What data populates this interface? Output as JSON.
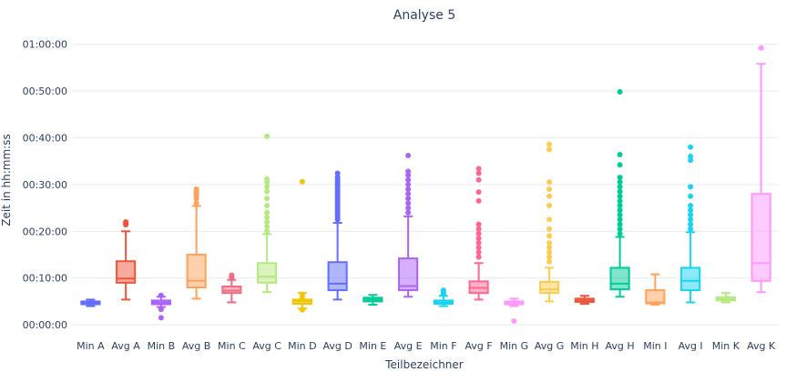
{
  "chart_data": {
    "type": "box",
    "title": "Analyse 5",
    "xlabel": "Teilbezeichner",
    "ylabel": "Zeit in hh:mm:ss",
    "y_unit": "minutes",
    "ylim": [
      -2.5,
      64
    ],
    "yticks": [
      0,
      10,
      20,
      30,
      40,
      50,
      60
    ],
    "ytick_labels": [
      "00:00:00",
      "00:10:00",
      "00:20:00",
      "00:30:00",
      "00:40:00",
      "00:50:00",
      "01:00:00"
    ],
    "grid": true,
    "legend": "none",
    "categories": [
      "Min A",
      "Avg A",
      "Min B",
      "Avg B",
      "Min C",
      "Avg C",
      "Min D",
      "Avg D",
      "Min E",
      "Avg E",
      "Min F",
      "Avg F",
      "Min G",
      "Avg G",
      "Min H",
      "Avg H",
      "Min I",
      "Avg I",
      "Min K",
      "Avg K"
    ],
    "boxes": [
      {
        "color": "#636efa",
        "q1": 4.4,
        "median": 4.7,
        "q3": 5.0,
        "whisker_low": 4.0,
        "whisker_high": 5.4,
        "outliers": []
      },
      {
        "color": "#ef553b",
        "q1": 9.0,
        "median": 9.9,
        "q3": 13.6,
        "whisker_low": 5.4,
        "whisker_high": 20.0,
        "outliers": [
          21.4,
          21.7,
          22.0
        ]
      },
      {
        "color": "#ab63fa",
        "q1": 4.4,
        "median": 4.8,
        "q3": 5.2,
        "whisker_low": 3.8,
        "whisker_high": 6.0,
        "outliers": [
          1.5,
          3.3,
          6.3
        ]
      },
      {
        "color": "#ffa15a",
        "q1": 8.0,
        "median": 9.4,
        "q3": 15.0,
        "whisker_low": 5.6,
        "whisker_high": 25.4,
        "outliers": [
          26.0,
          27.0,
          27.6,
          28.0,
          28.3,
          28.6,
          29.0
        ]
      },
      {
        "color": "#ef6b82",
        "q1": 6.8,
        "median": 7.3,
        "q3": 8.2,
        "whisker_low": 4.8,
        "whisker_high": 9.6,
        "outliers": [
          10.0,
          10.3,
          10.6
        ]
      },
      {
        "color": "#b6e880",
        "q1": 9.0,
        "median": 10.3,
        "q3": 13.2,
        "whisker_low": 7.0,
        "whisker_high": 19.4,
        "outliers": [
          20.0,
          21.0,
          22.0,
          23.0,
          24.0,
          25.5,
          27.0,
          28.5,
          29.5,
          30.5,
          31.2,
          40.3
        ]
      },
      {
        "color": "#f5c400",
        "q1": 4.5,
        "median": 5.0,
        "q3": 5.4,
        "whisker_low": 3.5,
        "whisker_high": 6.8,
        "outliers": [
          3.2,
          6.0,
          6.5,
          30.6
        ]
      },
      {
        "color": "#636efa",
        "q1": 7.4,
        "median": 8.8,
        "q3": 13.4,
        "whisker_low": 5.4,
        "whisker_high": 21.8,
        "outliers": [
          22.5,
          23.0,
          23.5,
          24.0,
          24.5,
          25.0,
          25.5,
          26.0,
          26.5,
          27.0,
          27.5,
          28.0,
          28.5,
          29.0,
          29.5,
          30.0,
          30.5,
          31.0,
          31.6,
          32.4
        ]
      },
      {
        "color": "#00cc96",
        "q1": 5.0,
        "median": 5.4,
        "q3": 5.8,
        "whisker_low": 4.3,
        "whisker_high": 6.4,
        "outliers": []
      },
      {
        "color": "#ab63fa",
        "q1": 7.4,
        "median": 8.3,
        "q3": 14.2,
        "whisker_low": 6.0,
        "whisker_high": 23.2,
        "outliers": [
          24.0,
          25.0,
          26.0,
          27.0,
          28.0,
          29.0,
          30.0,
          31.0,
          32.0,
          32.8,
          36.2
        ]
      },
      {
        "color": "#19d3f3",
        "q1": 4.5,
        "median": 4.8,
        "q3": 5.2,
        "whisker_low": 4.0,
        "whisker_high": 6.2,
        "outliers": [
          6.6,
          7.0,
          7.4
        ]
      },
      {
        "color": "#ff6692",
        "q1": 6.8,
        "median": 7.9,
        "q3": 9.3,
        "whisker_low": 5.4,
        "whisker_high": 13.2,
        "outliers": [
          14.5,
          15.5,
          16.5,
          17.5,
          18.5,
          19.5,
          20.5,
          21.5,
          26.5,
          28.4,
          31.0,
          32.4,
          33.4
        ]
      },
      {
        "color": "#ff97ff",
        "q1": 4.4,
        "median": 4.7,
        "q3": 5.0,
        "whisker_low": 4.0,
        "whisker_high": 5.6,
        "outliers": [
          0.8
        ]
      },
      {
        "color": "#fecb52",
        "q1": 6.8,
        "median": 7.6,
        "q3": 9.2,
        "whisker_low": 5.0,
        "whisker_high": 12.2,
        "outliers": [
          13.5,
          14.5,
          15.5,
          16.5,
          17.5,
          19.0,
          20.5,
          22.5,
          25.5,
          27.5,
          29.0,
          30.5,
          37.5,
          38.6
        ]
      },
      {
        "color": "#ef553b",
        "q1": 4.9,
        "median": 5.2,
        "q3": 5.6,
        "whisker_low": 4.5,
        "whisker_high": 6.2,
        "outliers": []
      },
      {
        "color": "#00cc96",
        "q1": 7.6,
        "median": 8.8,
        "q3": 12.2,
        "whisker_low": 6.0,
        "whisker_high": 18.8,
        "outliers": [
          19.5,
          20.5,
          21.5,
          22.5,
          23.5,
          24.5,
          25.5,
          26.5,
          27.5,
          28.5,
          29.5,
          30.5,
          31.5,
          34.2,
          36.4,
          49.8
        ]
      },
      {
        "color": "#ffa15a",
        "q1": 4.6,
        "median": 4.8,
        "q3": 7.4,
        "whisker_low": 4.3,
        "whisker_high": 10.8,
        "outliers": []
      },
      {
        "color": "#19d3f3",
        "q1": 7.4,
        "median": 9.4,
        "q3": 12.2,
        "whisker_low": 4.8,
        "whisker_high": 19.8,
        "outliers": [
          20.5,
          21.5,
          22.5,
          23.5,
          24.5,
          25.5,
          27.5,
          29.5,
          35.2,
          36.0,
          38.0
        ]
      },
      {
        "color": "#b6e880",
        "q1": 5.2,
        "median": 5.5,
        "q3": 5.9,
        "whisker_low": 4.8,
        "whisker_high": 6.8,
        "outliers": []
      },
      {
        "color": "#ff97ff",
        "q1": 9.4,
        "median": 13.2,
        "q3": 28.0,
        "whisker_low": 7.0,
        "whisker_high": 55.8,
        "outliers": [
          59.2
        ]
      }
    ]
  }
}
